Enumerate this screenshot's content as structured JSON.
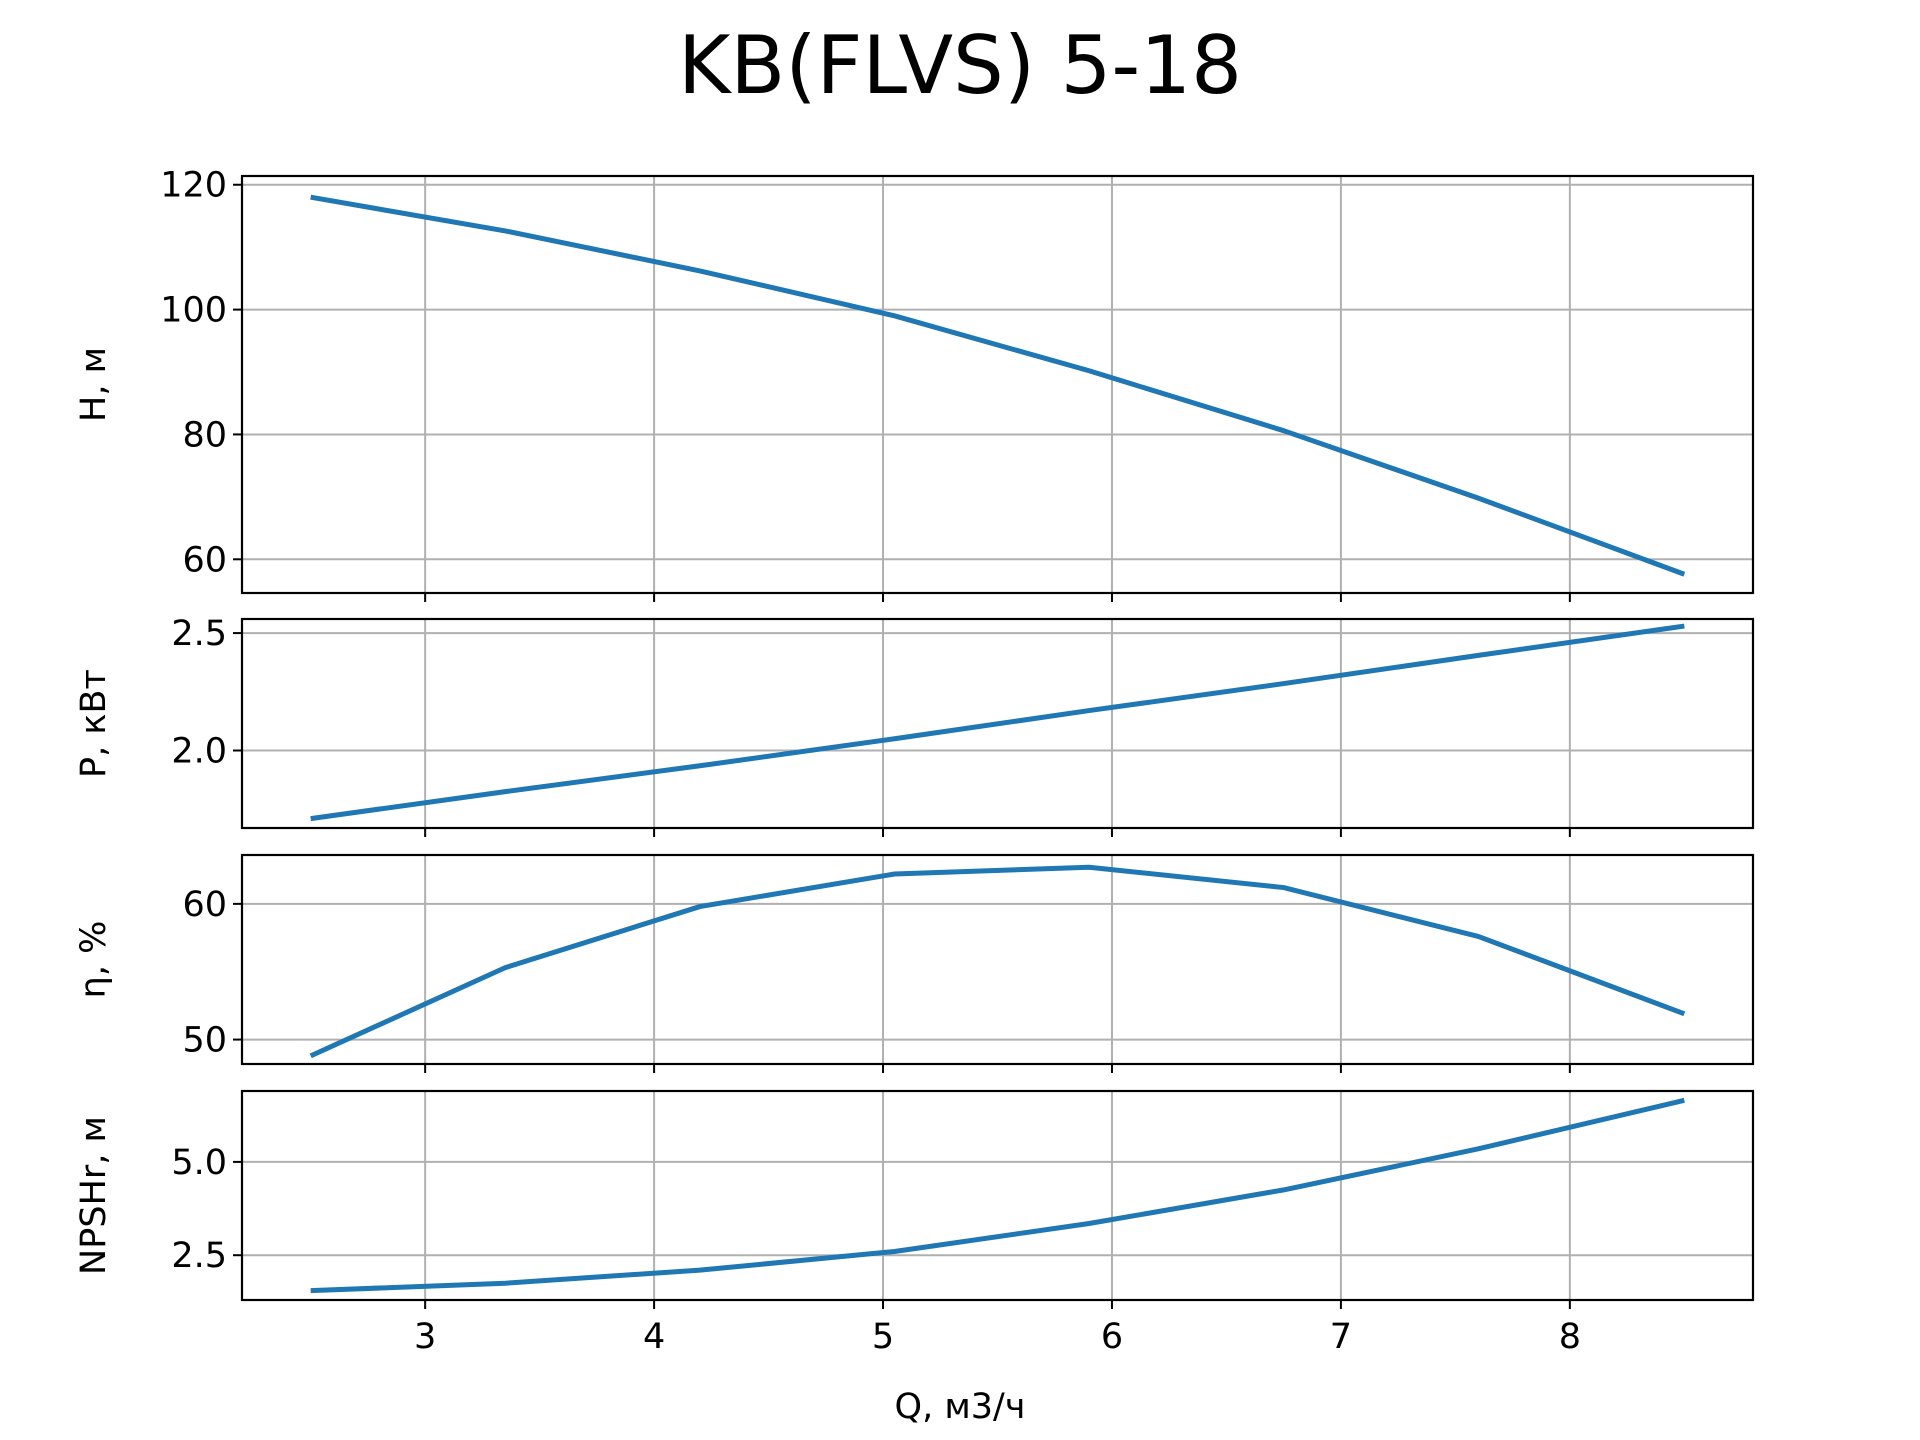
{
  "chart_data": {
    "type": "line",
    "title": "KB(FLVS) 5-18",
    "xlabel": "Q, м3/ч",
    "xlim": [
      2.2,
      8.8
    ],
    "x_ticks": [
      "3",
      "4",
      "5",
      "6",
      "7",
      "8"
    ],
    "x_tick_values": [
      3,
      4,
      5,
      6,
      7,
      8
    ],
    "grid": true,
    "line_color": "#1f77b4",
    "panels": [
      {
        "ylabel": "H, м",
        "ylim": [
          54.6,
          121.4
        ],
        "y_ticks": [
          "60",
          "80",
          "100",
          "120"
        ],
        "y_tick_values": [
          60,
          80,
          100,
          120
        ],
        "series": {
          "x": [
            2.5,
            3.35,
            4.2,
            5.05,
            5.9,
            6.75,
            7.6,
            8.5
          ],
          "y": [
            118,
            112.6,
            106.2,
            99,
            90.2,
            80.6,
            69.8,
            57.6
          ]
        }
      },
      {
        "ylabel": "P, кВт",
        "ylim": [
          1.67,
          2.56
        ],
        "y_ticks": [
          "2.0",
          "2.5"
        ],
        "y_tick_values": [
          2.0,
          2.5
        ],
        "series": {
          "x": [
            2.5,
            3.35,
            4.2,
            5.05,
            5.9,
            6.75,
            7.6,
            8.5
          ],
          "y": [
            1.71,
            1.825,
            1.935,
            2.05,
            2.17,
            2.285,
            2.405,
            2.53
          ]
        }
      },
      {
        "ylabel": "η, %",
        "ylim": [
          48.2,
          63.6
        ],
        "y_ticks": [
          "50",
          "60"
        ],
        "y_tick_values": [
          50,
          60
        ],
        "series": {
          "x": [
            2.5,
            3.35,
            4.2,
            5.05,
            5.9,
            6.75,
            7.6,
            8.5
          ],
          "y": [
            48.8,
            55.3,
            59.8,
            62.2,
            62.7,
            61.2,
            57.6,
            51.9
          ]
        }
      },
      {
        "ylabel": "NPSHr, м",
        "ylim": [
          1.3,
          6.9
        ],
        "y_ticks": [
          "2.5",
          "5.0"
        ],
        "y_tick_values": [
          2.5,
          5.0
        ],
        "series": {
          "x": [
            2.5,
            3.35,
            4.2,
            5.05,
            5.9,
            6.75,
            7.6,
            8.5
          ],
          "y": [
            1.55,
            1.75,
            2.1,
            2.6,
            3.35,
            4.25,
            5.35,
            6.65
          ]
        }
      }
    ]
  }
}
